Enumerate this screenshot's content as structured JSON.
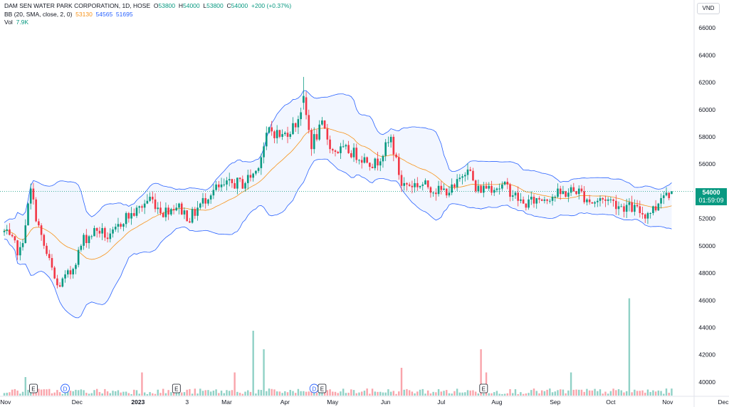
{
  "legend": {
    "symbol": "DAM SEN WATER PARK CORPORATION, 1D, HOSE",
    "open_label": "O",
    "open": "53800",
    "high_label": "H",
    "high": "54000",
    "low_label": "L",
    "low": "53800",
    "close_label": "C",
    "close": "54000",
    "change": "+200 (+0.37%)",
    "bb_label": "BB (20, SMA, close, 2, 0)",
    "bb_basis": "53130",
    "bb_upper": "54565",
    "bb_lower": "51695",
    "vol_label": "Vol",
    "vol_value": "7.9K"
  },
  "currency": "VND",
  "last_price": {
    "price": "54000",
    "countdown": "01:59:09"
  },
  "colors": {
    "up": "#089981",
    "down": "#f23645",
    "basis": "#f7931a",
    "bands": "#2962ff",
    "band_fill": "#2962ff"
  },
  "chart_data": {
    "type": "candlestick",
    "title": "DAM SEN WATER PARK CORPORATION, 1D, HOSE",
    "y_axis": {
      "range": [
        39000,
        67000
      ],
      "ticks": [
        40000,
        42000,
        44000,
        46000,
        48000,
        50000,
        52000,
        54000,
        56000,
        58000,
        60000,
        62000,
        64000,
        66000
      ],
      "position": "right"
    },
    "x_axis": {
      "ticks": [
        {
          "label": "Nov",
          "x": 0.5
        },
        {
          "label": "Dec",
          "x": 27.5
        },
        {
          "label": "2023",
          "x": 50.5
        },
        {
          "label": "3",
          "x": 69
        },
        {
          "label": "Mar",
          "x": 84
        },
        {
          "label": "Apr",
          "x": 106
        },
        {
          "label": "May",
          "x": 124
        },
        {
          "label": "Jun",
          "x": 144
        },
        {
          "label": "Jul",
          "x": 165
        },
        {
          "label": "Aug",
          "x": 186
        },
        {
          "label": "Sep",
          "x": 208
        },
        {
          "label": "Oct",
          "x": 229
        },
        {
          "label": "Nov",
          "x": 250.5
        },
        {
          "label": "Dec",
          "x": 271.5
        }
      ]
    },
    "waypoints": [
      [
        0,
        51000
      ],
      [
        6,
        49500
      ],
      [
        10,
        54000
      ],
      [
        14,
        50500
      ],
      [
        20,
        47000
      ],
      [
        25,
        48000
      ],
      [
        30,
        50500
      ],
      [
        35,
        51200
      ],
      [
        40,
        50500
      ],
      [
        45,
        52000
      ],
      [
        50,
        52500
      ],
      [
        55,
        53500
      ],
      [
        60,
        52500
      ],
      [
        65,
        53000
      ],
      [
        70,
        52000
      ],
      [
        78,
        54000
      ],
      [
        85,
        54500
      ],
      [
        90,
        54600
      ],
      [
        95,
        55500
      ],
      [
        100,
        58500
      ],
      [
        105,
        58000
      ],
      [
        110,
        59000
      ],
      [
        113,
        60500
      ],
      [
        116,
        57500
      ],
      [
        120,
        58800
      ],
      [
        124,
        57000
      ],
      [
        130,
        57000
      ],
      [
        140,
        56000
      ],
      [
        146,
        57800
      ],
      [
        150,
        54500
      ],
      [
        158,
        54500
      ],
      [
        165,
        54000
      ],
      [
        170,
        54200
      ],
      [
        175,
        56000
      ],
      [
        178,
        54000
      ],
      [
        183,
        54400
      ],
      [
        190,
        54300
      ],
      [
        196,
        53000
      ],
      [
        203,
        53500
      ],
      [
        210,
        53800
      ],
      [
        216,
        54100
      ],
      [
        222,
        53200
      ],
      [
        227,
        53500
      ],
      [
        232,
        53000
      ],
      [
        237,
        52800
      ],
      [
        242,
        52300
      ],
      [
        246,
        52800
      ],
      [
        248,
        53800
      ],
      [
        252,
        54000
      ]
    ],
    "bollinger": {
      "period": 20,
      "stdev": 2,
      "last": {
        "basis": 53130,
        "upper": 54565,
        "lower": 51695
      }
    },
    "volume": {
      "last": "7.9K",
      "spikes": [
        {
          "x": 8,
          "v": 4
        },
        {
          "x": 52,
          "v": 5
        },
        {
          "x": 87,
          "v": 5
        },
        {
          "x": 94,
          "v": 14
        },
        {
          "x": 98,
          "v": 10
        },
        {
          "x": 150,
          "v": 6
        },
        {
          "x": 180,
          "v": 10
        },
        {
          "x": 182,
          "v": 5
        },
        {
          "x": 214,
          "v": 5
        },
        {
          "x": 236,
          "v": 21
        }
      ]
    },
    "events": [
      {
        "type": "E",
        "x": 11
      },
      {
        "type": "D",
        "x": 23
      },
      {
        "type": "E",
        "x": 65
      },
      {
        "type": "D",
        "x": 117
      },
      {
        "type": "E",
        "x": 120
      },
      {
        "type": "E",
        "x": 181
      }
    ],
    "last_bar_index": 252
  }
}
